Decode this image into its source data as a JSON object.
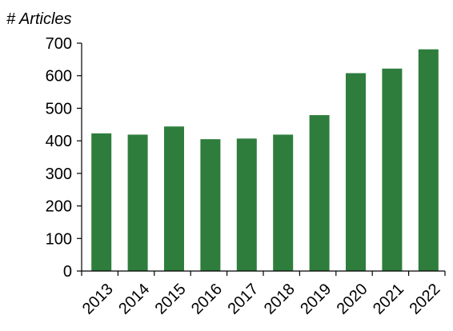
{
  "chart_data": {
    "type": "bar",
    "title": "",
    "xlabel": "",
    "ylabel": "# Articles",
    "categories": [
      "2013",
      "2014",
      "2015",
      "2016",
      "2017",
      "2018",
      "2019",
      "2020",
      "2021",
      "2022"
    ],
    "values": [
      423,
      419,
      444,
      405,
      407,
      419,
      479,
      608,
      622,
      681
    ],
    "ylim": [
      0,
      700
    ],
    "yticks": [
      0,
      100,
      200,
      300,
      400,
      500,
      600,
      700
    ],
    "grid": false,
    "legend": "none",
    "bar_color": "#2e7d3c"
  }
}
